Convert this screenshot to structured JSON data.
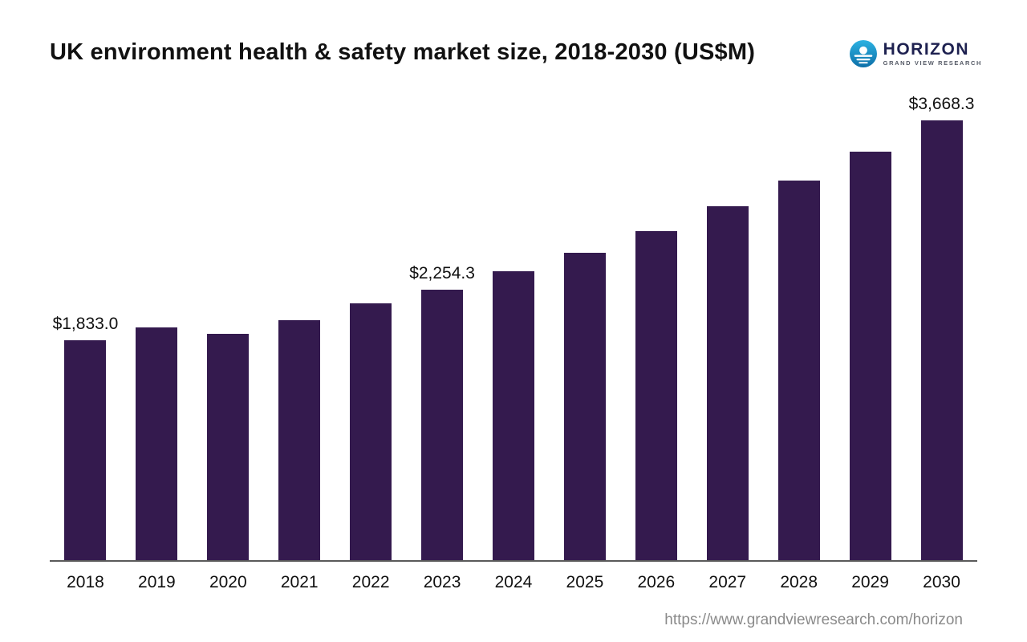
{
  "header": {
    "logo": {
      "name": "HORIZON",
      "subtitle": "GRAND VIEW RESEARCH"
    }
  },
  "footer": {
    "url": "https://www.grandviewresearch.com/horizon"
  },
  "colors": {
    "bar": "#341A4E",
    "logo_blue_top": "#2CB2E2",
    "logo_blue_bottom": "#0E6FA8",
    "axis": "#5A5A5A",
    "url_gray": "#8A8A8A"
  },
  "chart_data": {
    "type": "bar",
    "title": "UK environment health & safety market size, 2018-2030 (US$M)",
    "xlabel": "",
    "ylabel": "",
    "ylim": [
      0,
      3750
    ],
    "grid": false,
    "legend": "none",
    "categories": [
      "2018",
      "2019",
      "2020",
      "2021",
      "2022",
      "2023",
      "2024",
      "2025",
      "2026",
      "2027",
      "2028",
      "2029",
      "2030"
    ],
    "values": [
      1833.0,
      1943,
      1890,
      2005,
      2140,
      2254.3,
      2410,
      2565,
      2745,
      2952,
      3168,
      3407,
      3668.3
    ],
    "point_labels": [
      "$1,833.0",
      "",
      "",
      "",
      "",
      "$2,254.3",
      "",
      "",
      "",
      "",
      "",
      "",
      "$3,668.3"
    ]
  }
}
